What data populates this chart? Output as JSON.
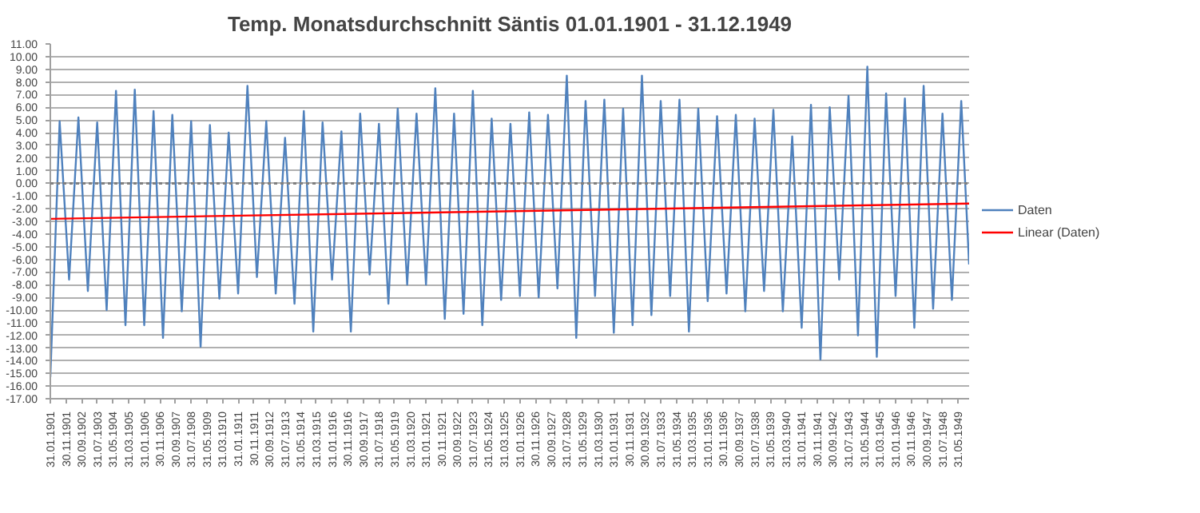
{
  "chart_data": {
    "type": "line",
    "title": "Temp. Monatsdurchschnitt Säntis 01.01.1901 - 31.12.1949",
    "series": [
      {
        "name": "Daten",
        "color": "#4f81bd",
        "x": [
          "1901-01-31",
          "1901-07-31",
          "1902-01-31",
          "1902-07-31",
          "1903-01-31",
          "1903-07-31",
          "1904-01-31",
          "1904-07-31",
          "1905-01-31",
          "1905-07-31",
          "1906-01-31",
          "1906-07-31",
          "1907-01-31",
          "1907-07-31",
          "1908-01-31",
          "1908-07-31",
          "1909-01-31",
          "1909-07-31",
          "1910-01-31",
          "1910-07-31",
          "1911-01-31",
          "1911-07-31",
          "1912-01-31",
          "1912-07-31",
          "1913-01-31",
          "1913-07-31",
          "1914-01-31",
          "1914-07-31",
          "1915-01-31",
          "1915-07-31",
          "1916-01-31",
          "1916-07-31",
          "1917-01-31",
          "1917-07-31",
          "1918-01-31",
          "1918-07-31",
          "1919-01-31",
          "1919-07-31",
          "1920-01-31",
          "1920-07-31",
          "1921-01-31",
          "1921-07-31",
          "1922-01-31",
          "1922-07-31",
          "1923-01-31",
          "1923-07-31",
          "1924-01-31",
          "1924-07-31",
          "1925-01-31",
          "1925-07-31",
          "1926-01-31",
          "1926-07-31",
          "1927-01-31",
          "1927-07-31",
          "1928-01-31",
          "1928-07-31",
          "1929-01-31",
          "1929-07-31",
          "1930-01-31",
          "1930-07-31",
          "1931-01-31",
          "1931-07-31",
          "1932-01-31",
          "1932-07-31",
          "1933-01-31",
          "1933-07-31",
          "1934-01-31",
          "1934-07-31",
          "1935-01-31",
          "1935-07-31",
          "1936-01-31",
          "1936-07-31",
          "1937-01-31",
          "1937-07-31",
          "1938-01-31",
          "1938-07-31",
          "1939-01-31",
          "1939-07-31",
          "1940-01-31",
          "1940-07-31",
          "1941-01-31",
          "1941-07-31",
          "1942-01-31",
          "1942-07-31",
          "1943-01-31",
          "1943-07-31",
          "1944-01-31",
          "1944-07-31",
          "1945-01-31",
          "1945-07-31",
          "1946-01-31",
          "1946-07-31",
          "1947-01-31",
          "1947-07-31",
          "1948-01-31",
          "1948-07-31",
          "1949-01-31",
          "1949-07-31",
          "1949-12-31"
        ],
        "values": [
          -15.3,
          4.9,
          -7.6,
          5.2,
          -8.5,
          4.8,
          -10.0,
          7.3,
          -11.2,
          7.4,
          -11.2,
          5.7,
          -12.2,
          5.4,
          -10.1,
          4.9,
          -12.9,
          4.6,
          -9.1,
          4.0,
          -8.7,
          7.7,
          -7.4,
          4.9,
          -8.7,
          3.6,
          -9.5,
          5.7,
          -11.7,
          4.8,
          -7.6,
          4.1,
          -11.7,
          5.5,
          -7.2,
          4.7,
          -9.5,
          5.9,
          -8.0,
          5.5,
          -8.0,
          7.5,
          -10.7,
          5.5,
          -10.3,
          7.3,
          -11.2,
          5.1,
          -9.2,
          4.7,
          -8.9,
          5.6,
          -9.0,
          5.4,
          -8.3,
          8.5,
          -12.2,
          6.5,
          -8.9,
          6.6,
          -11.8,
          5.9,
          -11.2,
          8.5,
          -10.4,
          6.5,
          -8.9,
          6.6,
          -11.7,
          5.9,
          -9.3,
          5.3,
          -8.7,
          5.4,
          -10.1,
          5.1,
          -8.5,
          5.8,
          -10.1,
          3.7,
          -11.4,
          6.2,
          -13.9,
          6.0,
          -7.6,
          6.9,
          -12.0,
          9.2,
          -13.7,
          7.1,
          -8.9,
          6.7,
          -11.4,
          7.7,
          -9.9,
          5.5,
          -9.2,
          6.5,
          -6.4
        ]
      },
      {
        "name": "Linear (Daten)",
        "color": "#ff0000",
        "x": [
          "1901-01-31",
          "1949-12-31"
        ],
        "values": [
          -2.8,
          -1.6
        ]
      }
    ],
    "xlim": [
      "1901-01-31",
      "1949-12-31"
    ],
    "xticks": [
      {
        "value": "1901-01-31",
        "label": "31.01.1901"
      },
      {
        "value": "1901-11-30",
        "label": "30.11.1901"
      },
      {
        "value": "1902-09-30",
        "label": "30.09.1902"
      },
      {
        "value": "1903-07-31",
        "label": "31.07.1903"
      },
      {
        "value": "1904-05-31",
        "label": "31.05.1904"
      },
      {
        "value": "1905-03-31",
        "label": "31.03.1905"
      },
      {
        "value": "1906-01-31",
        "label": "31.01.1906"
      },
      {
        "value": "1906-11-30",
        "label": "30.11.1906"
      },
      {
        "value": "1907-09-30",
        "label": "30.09.1907"
      },
      {
        "value": "1908-07-31",
        "label": "31.07.1908"
      },
      {
        "value": "1909-05-31",
        "label": "31.05.1909"
      },
      {
        "value": "1910-03-31",
        "label": "31.03.1910"
      },
      {
        "value": "1911-01-31",
        "label": "31.01.1911"
      },
      {
        "value": "1911-11-30",
        "label": "30.11.1911"
      },
      {
        "value": "1912-09-30",
        "label": "30.09.1912"
      },
      {
        "value": "1913-07-31",
        "label": "31.07.1913"
      },
      {
        "value": "1914-05-31",
        "label": "31.05.1914"
      },
      {
        "value": "1915-03-31",
        "label": "31.03.1915"
      },
      {
        "value": "1916-01-31",
        "label": "31.01.1916"
      },
      {
        "value": "1916-11-30",
        "label": "30.11.1916"
      },
      {
        "value": "1917-09-30",
        "label": "30.09.1917"
      },
      {
        "value": "1918-07-31",
        "label": "31.07.1918"
      },
      {
        "value": "1919-05-31",
        "label": "31.05.1919"
      },
      {
        "value": "1920-03-31",
        "label": "31.03.1920"
      },
      {
        "value": "1921-01-31",
        "label": "31.01.1921"
      },
      {
        "value": "1921-11-30",
        "label": "30.11.1921"
      },
      {
        "value": "1922-09-30",
        "label": "30.09.1922"
      },
      {
        "value": "1923-07-31",
        "label": "31.07.1923"
      },
      {
        "value": "1924-05-31",
        "label": "31.05.1924"
      },
      {
        "value": "1925-03-31",
        "label": "31.03.1925"
      },
      {
        "value": "1926-01-31",
        "label": "31.01.1926"
      },
      {
        "value": "1926-11-30",
        "label": "30.11.1926"
      },
      {
        "value": "1927-09-30",
        "label": "30.09.1927"
      },
      {
        "value": "1928-07-31",
        "label": "31.07.1928"
      },
      {
        "value": "1929-05-31",
        "label": "31.05.1929"
      },
      {
        "value": "1930-03-31",
        "label": "31.03.1930"
      },
      {
        "value": "1931-01-31",
        "label": "31.01.1931"
      },
      {
        "value": "1931-11-30",
        "label": "30.11.1931"
      },
      {
        "value": "1932-09-30",
        "label": "30.09.1932"
      },
      {
        "value": "1933-07-31",
        "label": "31.07.1933"
      },
      {
        "value": "1934-05-31",
        "label": "31.05.1934"
      },
      {
        "value": "1935-03-31",
        "label": "31.03.1935"
      },
      {
        "value": "1936-01-31",
        "label": "31.01.1936"
      },
      {
        "value": "1936-11-30",
        "label": "30.11.1936"
      },
      {
        "value": "1937-09-30",
        "label": "30.09.1937"
      },
      {
        "value": "1938-07-31",
        "label": "31.07.1938"
      },
      {
        "value": "1939-05-31",
        "label": "31.05.1939"
      },
      {
        "value": "1940-03-31",
        "label": "31.03.1940"
      },
      {
        "value": "1941-01-31",
        "label": "31.01.1941"
      },
      {
        "value": "1941-11-30",
        "label": "30.11.1941"
      },
      {
        "value": "1942-09-30",
        "label": "30.09.1942"
      },
      {
        "value": "1943-07-31",
        "label": "31.07.1943"
      },
      {
        "value": "1944-05-31",
        "label": "31.05.1944"
      },
      {
        "value": "1945-03-31",
        "label": "31.03.1945"
      },
      {
        "value": "1946-01-31",
        "label": "31.01.1946"
      },
      {
        "value": "1946-11-30",
        "label": "30.11.1946"
      },
      {
        "value": "1947-09-30",
        "label": "30.09.1947"
      },
      {
        "value": "1948-07-31",
        "label": "31.07.1948"
      },
      {
        "value": "1949-05-31",
        "label": "31.05.1949"
      }
    ],
    "ylim": [
      -17,
      11
    ],
    "yticks": [
      {
        "value": -17,
        "label": "-17.00"
      },
      {
        "value": -16,
        "label": "-16.00"
      },
      {
        "value": -15,
        "label": "-15.00"
      },
      {
        "value": -14,
        "label": "-14.00"
      },
      {
        "value": -13,
        "label": "-13.00"
      },
      {
        "value": -12,
        "label": "-12.00"
      },
      {
        "value": -11,
        "label": "-11.00"
      },
      {
        "value": -10,
        "label": "-10.00"
      },
      {
        "value": -9,
        "label": "-9.00"
      },
      {
        "value": -8,
        "label": "-8.00"
      },
      {
        "value": -7,
        "label": "-7.00"
      },
      {
        "value": -6,
        "label": "-6.00"
      },
      {
        "value": -5,
        "label": "-5.00"
      },
      {
        "value": -4,
        "label": "-4.00"
      },
      {
        "value": -3,
        "label": "-3.00"
      },
      {
        "value": -2,
        "label": "-2.00"
      },
      {
        "value": -1,
        "label": "-1.00"
      },
      {
        "value": 0,
        "label": "0.00"
      },
      {
        "value": 1,
        "label": "1.00"
      },
      {
        "value": 2,
        "label": "2.00"
      },
      {
        "value": 3,
        "label": "3.00"
      },
      {
        "value": 4,
        "label": "4.00"
      },
      {
        "value": 5,
        "label": "5.00"
      },
      {
        "value": 6,
        "label": "6.00"
      },
      {
        "value": 7,
        "label": "7.00"
      },
      {
        "value": 8,
        "label": "8.00"
      },
      {
        "value": 9,
        "label": "9.00"
      },
      {
        "value": 10,
        "label": "10.00"
      },
      {
        "value": 11,
        "label": "11.00"
      }
    ],
    "ref_lines": [
      {
        "axis": "y",
        "value": 0,
        "color": "#808080",
        "line_style": "dotted"
      }
    ],
    "grid": "y",
    "legend": "right",
    "marker": "none",
    "line_style": "solid"
  }
}
